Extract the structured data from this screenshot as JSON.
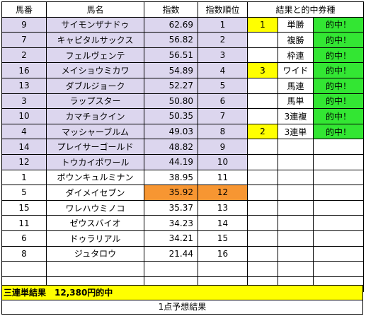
{
  "headers": {
    "horse_no": "馬番",
    "horse_name": "馬名",
    "index": "指数",
    "index_rank": "指数順位",
    "result": "結果と的中券種"
  },
  "rows": [
    {
      "no": "9",
      "name": "サイモンザナドゥ",
      "index": "62.69",
      "rank": "1",
      "hl": "lav",
      "idx_hl": "",
      "r1": "1",
      "r1_hl": "yellow",
      "bet": "単勝",
      "hit": "的中！"
    },
    {
      "no": "7",
      "name": "キャピタルサックス",
      "index": "56.82",
      "rank": "2",
      "hl": "lav",
      "idx_hl": "",
      "r1": "",
      "r1_hl": "",
      "bet": "複勝",
      "hit": "的中！"
    },
    {
      "no": "2",
      "name": "フェルヴェンテ",
      "index": "56.51",
      "rank": "3",
      "hl": "lav",
      "idx_hl": "",
      "r1": "",
      "r1_hl": "",
      "bet": "枠連",
      "hit": "的中！"
    },
    {
      "no": "16",
      "name": "メイショウミカワ",
      "index": "54.89",
      "rank": "4",
      "hl": "lav",
      "idx_hl": "",
      "r1": "3",
      "r1_hl": "yellow",
      "bet": "ワイド",
      "hit": "的中！"
    },
    {
      "no": "13",
      "name": "ダブルジョーク",
      "index": "52.27",
      "rank": "5",
      "hl": "lav",
      "idx_hl": "",
      "r1": "",
      "r1_hl": "",
      "bet": "馬連",
      "hit": "的中！"
    },
    {
      "no": "3",
      "name": "ラップスター",
      "index": "50.80",
      "rank": "6",
      "hl": "lav",
      "idx_hl": "",
      "r1": "",
      "r1_hl": "",
      "bet": "馬単",
      "hit": "的中！"
    },
    {
      "no": "10",
      "name": "カマチョクイン",
      "index": "50.35",
      "rank": "7",
      "hl": "lav",
      "idx_hl": "",
      "r1": "",
      "r1_hl": "",
      "bet": "3連複",
      "hit": "的中！"
    },
    {
      "no": "4",
      "name": "マッシャーブルム",
      "index": "49.03",
      "rank": "8",
      "hl": "lav",
      "idx_hl": "",
      "r1": "2",
      "r1_hl": "yellow",
      "bet": "3連単",
      "hit": "的中！"
    },
    {
      "no": "14",
      "name": "プレイサーゴールド",
      "index": "48.82",
      "rank": "9",
      "hl": "lav",
      "idx_hl": "",
      "r1": "",
      "r1_hl": "",
      "bet": "",
      "hit": ""
    },
    {
      "no": "12",
      "name": "トウカイポワール",
      "index": "44.19",
      "rank": "10",
      "hl": "lav",
      "idx_hl": "",
      "r1": "",
      "r1_hl": "",
      "bet": "",
      "hit": ""
    },
    {
      "no": "1",
      "name": "ボウンキュルミナン",
      "index": "38.95",
      "rank": "11",
      "hl": "",
      "idx_hl": "",
      "r1": "",
      "r1_hl": "",
      "bet": "",
      "hit": ""
    },
    {
      "no": "5",
      "name": "ダイメイセブン",
      "index": "35.92",
      "rank": "12",
      "hl": "",
      "idx_hl": "orange",
      "r1": "",
      "r1_hl": "",
      "bet": "",
      "hit": ""
    },
    {
      "no": "15",
      "name": "ワレハウミノコ",
      "index": "35.37",
      "rank": "13",
      "hl": "",
      "idx_hl": "",
      "r1": "",
      "r1_hl": "",
      "bet": "",
      "hit": ""
    },
    {
      "no": "11",
      "name": "ゼウスバイオ",
      "index": "34.23",
      "rank": "14",
      "hl": "",
      "idx_hl": "",
      "r1": "",
      "r1_hl": "",
      "bet": "",
      "hit": ""
    },
    {
      "no": "6",
      "name": "ドゥラリアル",
      "index": "34.21",
      "rank": "15",
      "hl": "",
      "idx_hl": "",
      "r1": "",
      "r1_hl": "",
      "bet": "",
      "hit": ""
    },
    {
      "no": "8",
      "name": "ジュタロウ",
      "index": "21.44",
      "rank": "16",
      "hl": "",
      "idx_hl": "",
      "r1": "",
      "r1_hl": "",
      "bet": "",
      "hit": ""
    },
    {
      "no": "",
      "name": "",
      "index": "",
      "rank": "",
      "hl": "",
      "idx_hl": "",
      "r1": "",
      "r1_hl": "",
      "bet": "",
      "hit": ""
    },
    {
      "no": "",
      "name": "",
      "index": "",
      "rank": "",
      "hl": "",
      "idx_hl": "",
      "r1": "",
      "r1_hl": "",
      "bet": "",
      "hit": ""
    }
  ],
  "footer": {
    "result_text": "三連単結果　12,380円的中",
    "caption": "1点予想結果"
  },
  "colors": {
    "lavender": "#dcd6ee",
    "orange": "#f79632",
    "yellow": "#ffff00",
    "green": "#33e633"
  }
}
